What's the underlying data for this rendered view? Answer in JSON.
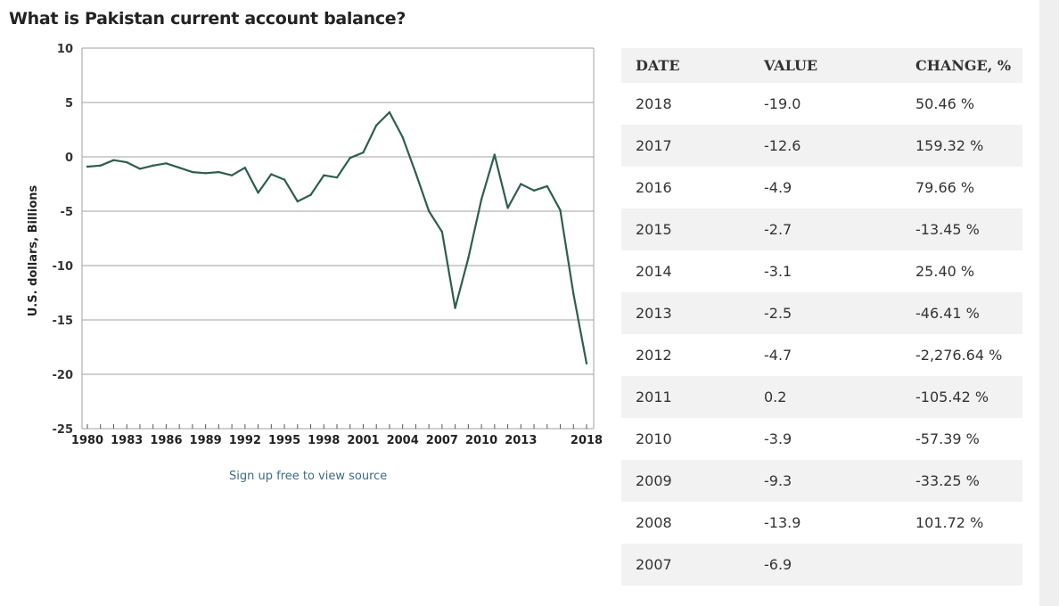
{
  "page": {
    "title": "What is Pakistan current account balance?",
    "source_link": "Sign up free to view source"
  },
  "chart_data": {
    "type": "line",
    "title": "What is Pakistan current account balance?",
    "xlabel": "",
    "ylabel": "U.S. dollars, Billions",
    "ylim": [
      -25,
      10
    ],
    "xlim": [
      1980,
      2018
    ],
    "yticks": [
      10,
      5,
      0,
      -5,
      -10,
      -15,
      -20,
      -25
    ],
    "xticks": [
      "1980",
      "1983",
      "1986",
      "1989",
      "1992",
      "1995",
      "1998",
      "2001",
      "2004",
      "2007",
      "2010",
      "2013",
      "2018"
    ],
    "grid": "horizontal",
    "line_color": "#2e5e4e",
    "x": [
      1980,
      1981,
      1982,
      1983,
      1984,
      1985,
      1986,
      1987,
      1988,
      1989,
      1990,
      1991,
      1992,
      1993,
      1994,
      1995,
      1996,
      1997,
      1998,
      1999,
      2000,
      2001,
      2002,
      2003,
      2004,
      2005,
      2006,
      2007,
      2008,
      2009,
      2010,
      2011,
      2012,
      2013,
      2014,
      2015,
      2016,
      2017,
      2018
    ],
    "series": [
      {
        "values": [
          -0.9,
          -0.8,
          -0.3,
          -0.5,
          -1.1,
          -0.8,
          -0.6,
          -1.0,
          -1.4,
          -1.5,
          -1.4,
          -1.7,
          -1.0,
          -3.3,
          -1.6,
          -2.1,
          -4.1,
          -3.5,
          -1.7,
          -1.9,
          -0.1,
          0.4,
          2.9,
          4.1,
          1.8,
          -1.5,
          -5.0,
          -6.9,
          -13.9,
          -9.3,
          -3.9,
          0.2,
          -4.7,
          -2.5,
          -3.1,
          -2.7,
          -4.9,
          -12.6,
          -19.0
        ]
      }
    ]
  },
  "table": {
    "headers": [
      "DATE",
      "VALUE",
      "CHANGE, %"
    ],
    "rows": [
      [
        "2018",
        "-19.0",
        "50.46 %"
      ],
      [
        "2017",
        "-12.6",
        "159.32 %"
      ],
      [
        "2016",
        "-4.9",
        "79.66 %"
      ],
      [
        "2015",
        "-2.7",
        "-13.45 %"
      ],
      [
        "2014",
        "-3.1",
        "25.40 %"
      ],
      [
        "2013",
        "-2.5",
        "-46.41 %"
      ],
      [
        "2012",
        "-4.7",
        "-2,276.64 %"
      ],
      [
        "2011",
        "0.2",
        "-105.42 %"
      ],
      [
        "2010",
        "-3.9",
        "-57.39 %"
      ],
      [
        "2009",
        "-9.3",
        "-33.25 %"
      ],
      [
        "2008",
        "-13.9",
        "101.72 %"
      ],
      [
        "2007",
        "-6.9",
        ""
      ]
    ]
  }
}
